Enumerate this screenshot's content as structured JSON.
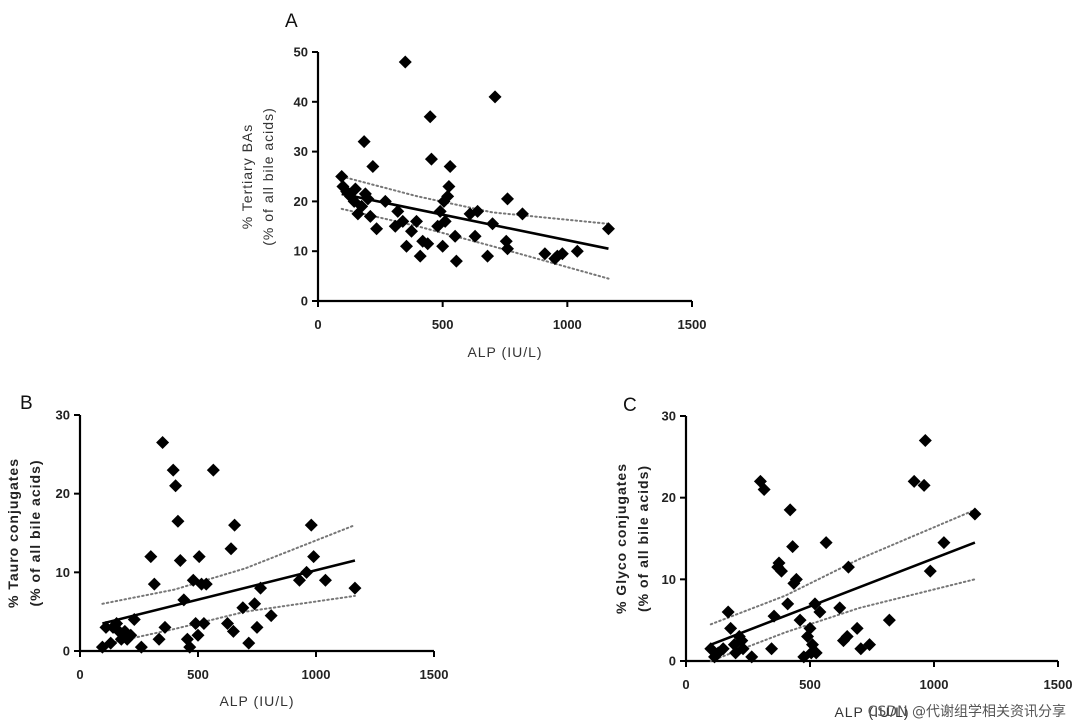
{
  "chart_data": [
    {
      "panel": "A",
      "type": "scatter",
      "xlabel": "ALP (IU/L)",
      "ylabel_line1": "% Tertiary BAs",
      "ylabel_line2": "(% of all bile acids)",
      "xlim": [
        0,
        1500
      ],
      "ylim": [
        0,
        50
      ],
      "xticks": [
        0,
        500,
        1000,
        1500
      ],
      "yticks": [
        0,
        10,
        20,
        30,
        40,
        50
      ],
      "points": [
        [
          95,
          25
        ],
        [
          100,
          23
        ],
        [
          115,
          22
        ],
        [
          130,
          21
        ],
        [
          145,
          20
        ],
        [
          150,
          22.5
        ],
        [
          160,
          17.5
        ],
        [
          175,
          19
        ],
        [
          185,
          32
        ],
        [
          190,
          21.5
        ],
        [
          200,
          20.5
        ],
        [
          210,
          17
        ],
        [
          220,
          27
        ],
        [
          235,
          14.5
        ],
        [
          270,
          20
        ],
        [
          310,
          15
        ],
        [
          320,
          18
        ],
        [
          340,
          16
        ],
        [
          350,
          48
        ],
        [
          355,
          11
        ],
        [
          375,
          14
        ],
        [
          395,
          16
        ],
        [
          410,
          9
        ],
        [
          420,
          12
        ],
        [
          440,
          11.5
        ],
        [
          450,
          37
        ],
        [
          455,
          28.5
        ],
        [
          480,
          15
        ],
        [
          490,
          18
        ],
        [
          500,
          11
        ],
        [
          505,
          20
        ],
        [
          510,
          16
        ],
        [
          520,
          21
        ],
        [
          525,
          23
        ],
        [
          530,
          27
        ],
        [
          550,
          13
        ],
        [
          555,
          8
        ],
        [
          610,
          17.5
        ],
        [
          630,
          13
        ],
        [
          640,
          18
        ],
        [
          680,
          9
        ],
        [
          700,
          15.5
        ],
        [
          710,
          41
        ],
        [
          755,
          12
        ],
        [
          760,
          20.5
        ],
        [
          760,
          10.5
        ],
        [
          820,
          17.5
        ],
        [
          910,
          9.5
        ],
        [
          950,
          8.5
        ],
        [
          960,
          9
        ],
        [
          980,
          9.5
        ],
        [
          1040,
          10
        ],
        [
          1165,
          14.5
        ]
      ],
      "fit_line": [
        [
          95,
          21.5
        ],
        [
          1165,
          10.5
        ]
      ],
      "ci_upper": [
        [
          95,
          25
        ],
        [
          400,
          21
        ],
        [
          700,
          17.8
        ],
        [
          1165,
          15.5
        ]
      ],
      "ci_lower": [
        [
          95,
          18.5
        ],
        [
          400,
          15
        ],
        [
          700,
          11
        ],
        [
          1165,
          4.5
        ]
      ]
    },
    {
      "panel": "B",
      "type": "scatter",
      "xlabel": "ALP (IU/L)",
      "ylabel_line1": "% Tauro conjugates",
      "ylabel_line2": "(% of all bile acids)",
      "xlim": [
        0,
        1500
      ],
      "ylim": [
        0,
        30
      ],
      "xticks": [
        0,
        500,
        1000,
        1500
      ],
      "yticks": [
        0,
        10,
        20,
        30
      ],
      "points": [
        [
          95,
          0.5
        ],
        [
          110,
          3
        ],
        [
          130,
          1
        ],
        [
          140,
          3
        ],
        [
          155,
          3.5
        ],
        [
          165,
          2.5
        ],
        [
          175,
          1.5
        ],
        [
          190,
          2.5
        ],
        [
          200,
          1.5
        ],
        [
          215,
          2
        ],
        [
          230,
          4
        ],
        [
          260,
          0.5
        ],
        [
          300,
          12
        ],
        [
          315,
          8.5
        ],
        [
          335,
          1.5
        ],
        [
          350,
          26.5
        ],
        [
          360,
          3
        ],
        [
          395,
          23
        ],
        [
          405,
          21
        ],
        [
          415,
          16.5
        ],
        [
          425,
          11.5
        ],
        [
          440,
          6.5
        ],
        [
          455,
          1.5
        ],
        [
          465,
          0.5
        ],
        [
          480,
          9
        ],
        [
          490,
          3.5
        ],
        [
          500,
          2
        ],
        [
          505,
          12
        ],
        [
          515,
          8.5
        ],
        [
          525,
          3.5
        ],
        [
          535,
          8.5
        ],
        [
          565,
          23
        ],
        [
          625,
          3.5
        ],
        [
          640,
          13
        ],
        [
          650,
          2.5
        ],
        [
          655,
          16
        ],
        [
          690,
          5.5
        ],
        [
          715,
          1
        ],
        [
          740,
          6
        ],
        [
          750,
          3
        ],
        [
          765,
          8
        ],
        [
          810,
          4.5
        ],
        [
          930,
          9
        ],
        [
          960,
          10
        ],
        [
          980,
          16
        ],
        [
          990,
          12
        ],
        [
          1040,
          9
        ],
        [
          1165,
          8
        ]
      ],
      "fit_line": [
        [
          95,
          3.5
        ],
        [
          1165,
          11.5
        ]
      ],
      "ci_upper": [
        [
          95,
          6
        ],
        [
          400,
          7.8
        ],
        [
          700,
          10.5
        ],
        [
          1165,
          16
        ]
      ],
      "ci_lower": [
        [
          95,
          0.8
        ],
        [
          400,
          2.8
        ],
        [
          700,
          5
        ],
        [
          1165,
          7
        ]
      ]
    },
    {
      "panel": "C",
      "type": "scatter",
      "xlabel": "ALP (IU/L)",
      "ylabel_line1": "% Glyco conjugates",
      "ylabel_line2": "(% of all bile acids)",
      "xlim": [
        0,
        1500
      ],
      "ylim": [
        0,
        30
      ],
      "xticks": [
        0,
        500,
        1000,
        1500
      ],
      "yticks": [
        0,
        10,
        20,
        30
      ],
      "points": [
        [
          100,
          1.5
        ],
        [
          115,
          0.5
        ],
        [
          130,
          1
        ],
        [
          150,
          1.5
        ],
        [
          170,
          6
        ],
        [
          180,
          4
        ],
        [
          195,
          2
        ],
        [
          200,
          1
        ],
        [
          215,
          3
        ],
        [
          225,
          2.5
        ],
        [
          230,
          1.5
        ],
        [
          265,
          0.5
        ],
        [
          300,
          22
        ],
        [
          315,
          21
        ],
        [
          345,
          1.5
        ],
        [
          355,
          5.5
        ],
        [
          370,
          11.5
        ],
        [
          375,
          12
        ],
        [
          385,
          11
        ],
        [
          410,
          7
        ],
        [
          420,
          18.5
        ],
        [
          430,
          14
        ],
        [
          435,
          9.5
        ],
        [
          445,
          10
        ],
        [
          460,
          5
        ],
        [
          475,
          0.5
        ],
        [
          490,
          3
        ],
        [
          500,
          4
        ],
        [
          505,
          1
        ],
        [
          510,
          2
        ],
        [
          520,
          7
        ],
        [
          525,
          1
        ],
        [
          540,
          6
        ],
        [
          565,
          14.5
        ],
        [
          620,
          6.5
        ],
        [
          635,
          2.5
        ],
        [
          650,
          3
        ],
        [
          655,
          11.5
        ],
        [
          690,
          4
        ],
        [
          705,
          1.5
        ],
        [
          740,
          2
        ],
        [
          820,
          5
        ],
        [
          920,
          22
        ],
        [
          960,
          21.5
        ],
        [
          965,
          27
        ],
        [
          985,
          11
        ],
        [
          1040,
          14.5
        ],
        [
          1165,
          18
        ]
      ],
      "fit_line": [
        [
          100,
          2
        ],
        [
          1165,
          14.5
        ]
      ],
      "ci_upper": [
        [
          100,
          4.5
        ],
        [
          400,
          8
        ],
        [
          700,
          12.5
        ],
        [
          1165,
          18.5
        ]
      ],
      "ci_lower": [
        [
          100,
          0
        ],
        [
          400,
          3.5
        ],
        [
          700,
          6.5
        ],
        [
          1165,
          10
        ]
      ]
    }
  ],
  "watermark": "CSDN @代谢组学相关资讯分享"
}
